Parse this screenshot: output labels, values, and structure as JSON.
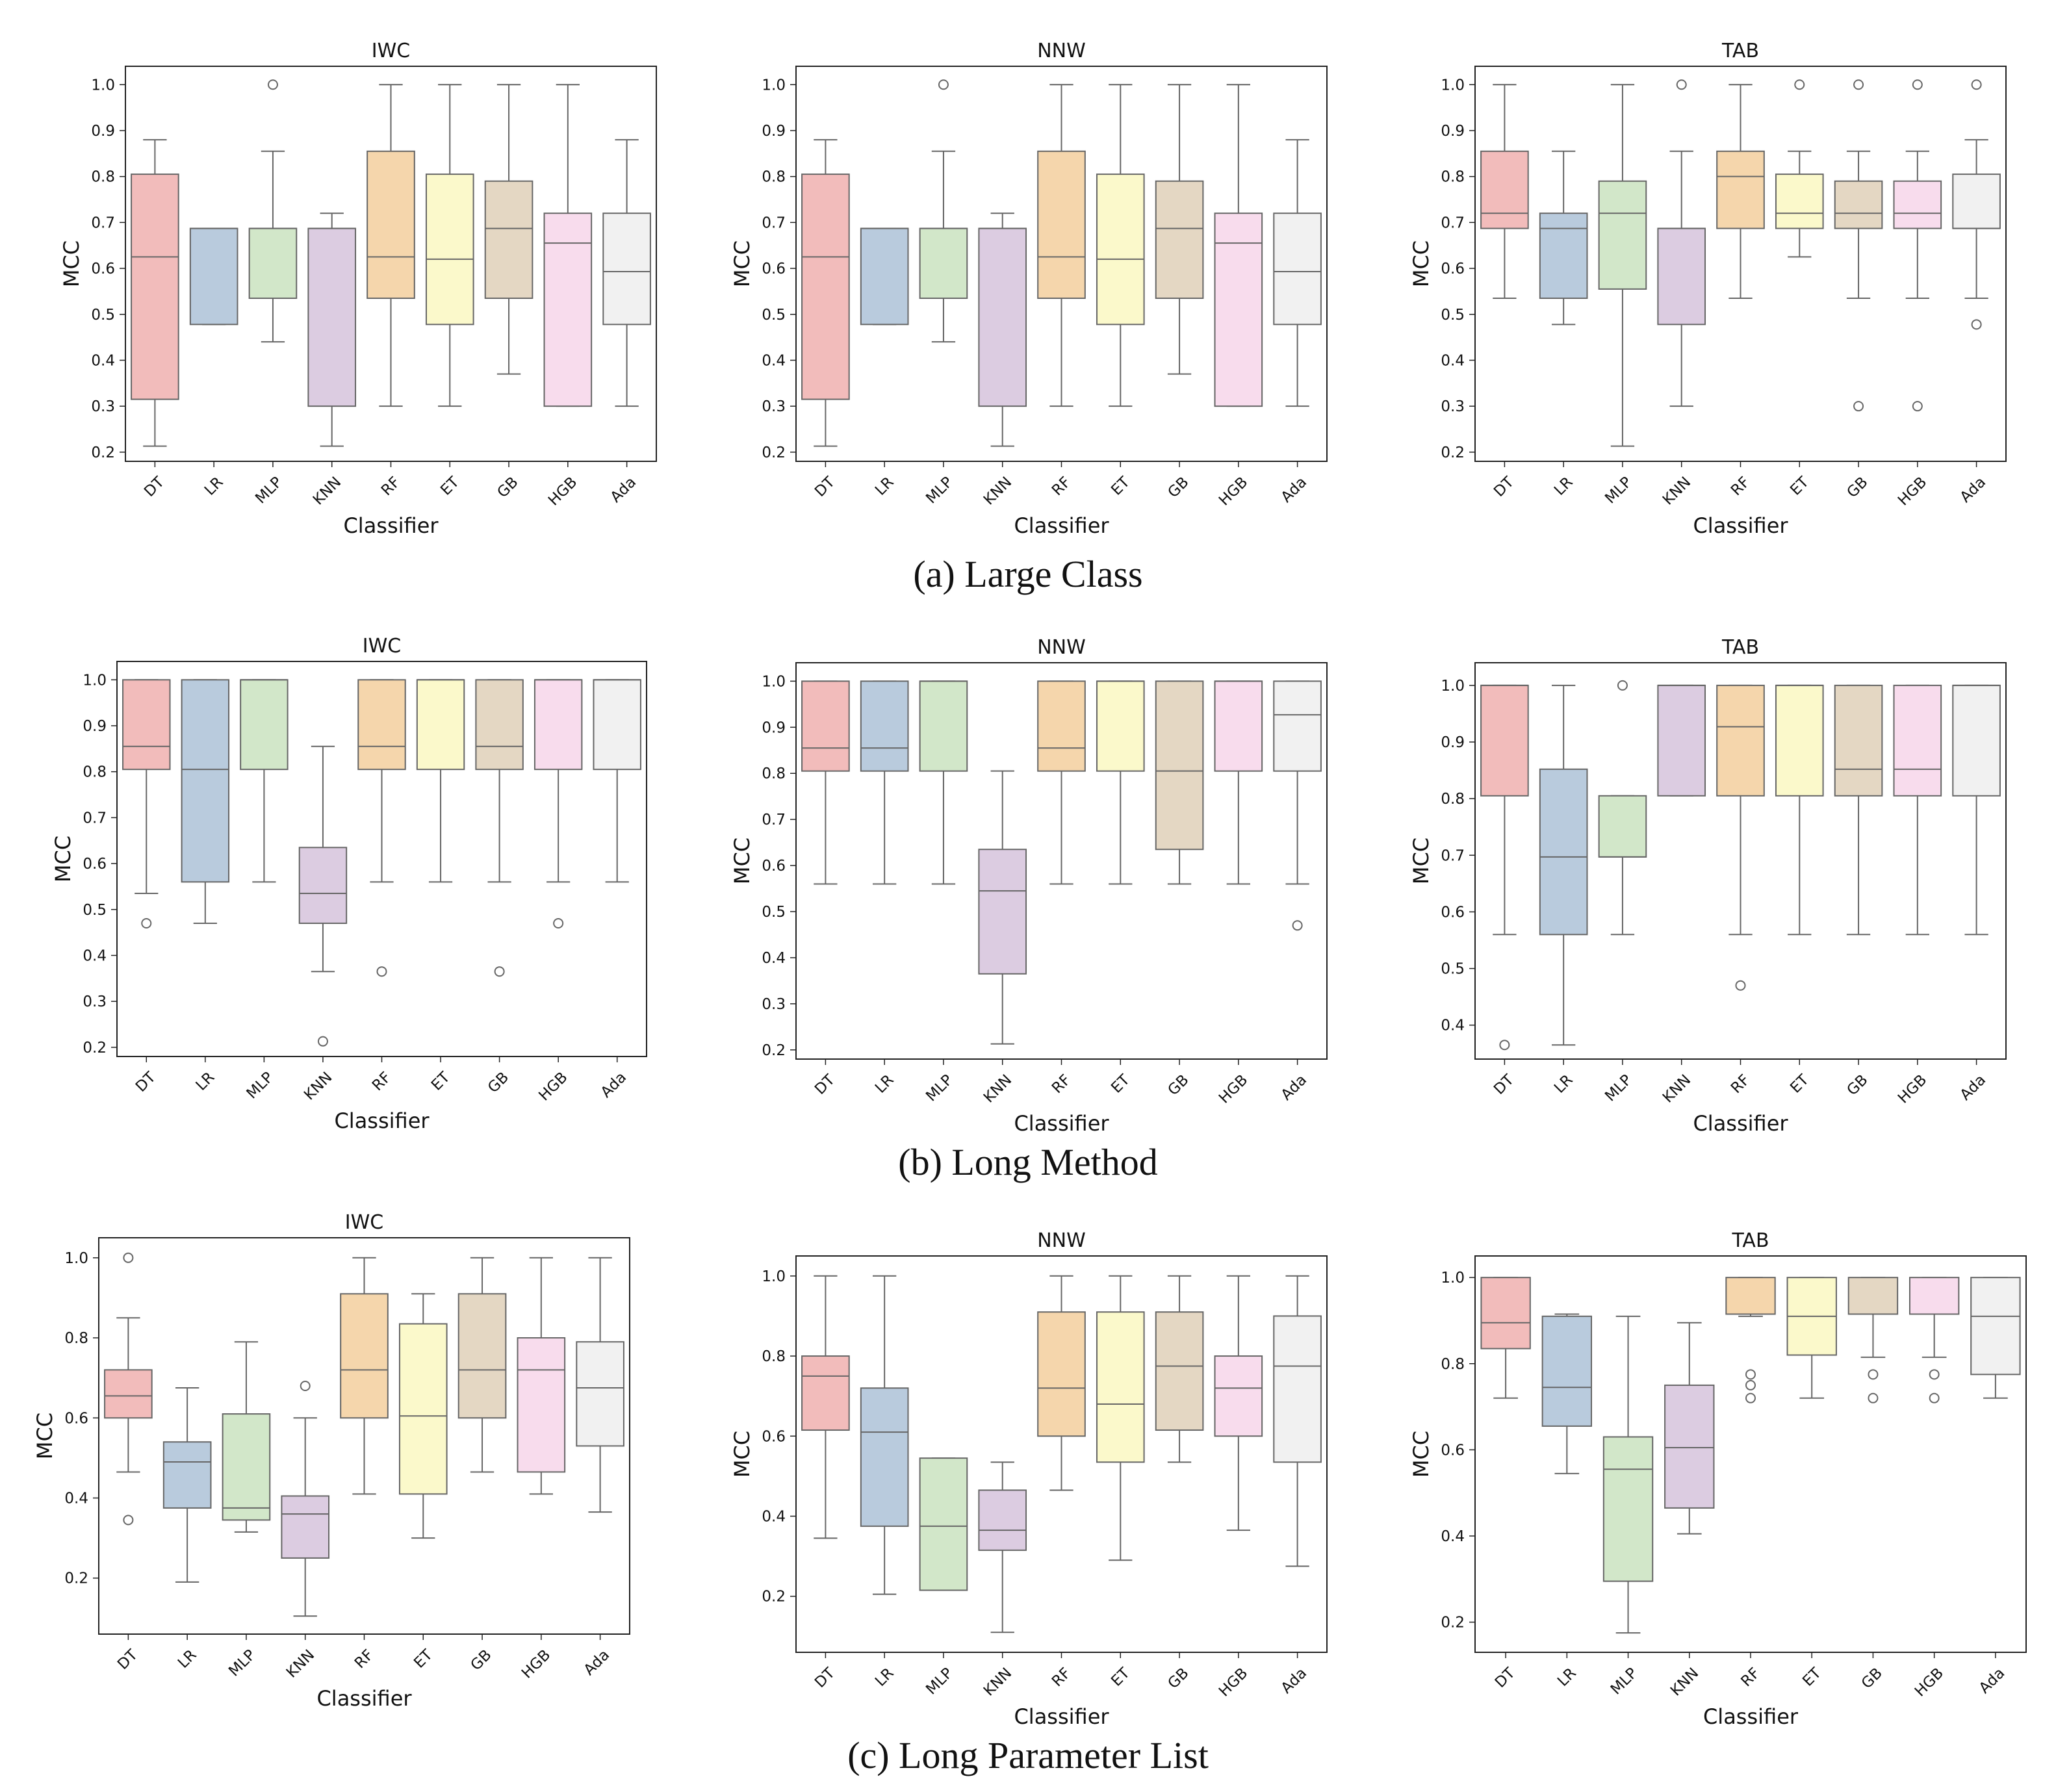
{
  "captions": [
    "(a) Large Class",
    "(b) Long Method",
    "(c) Long Parameter List"
  ],
  "palette": {
    "DT": "#f2bcbb",
    "LR": "#b9cbdd",
    "MLP": "#d2e7c9",
    "KNN": "#dccce1",
    "RF": "#f5d6ac",
    "ET": "#fbf9cb",
    "GB": "#e4d7c3",
    "HGB": "#f8dced",
    "Ada": "#f1f1f1",
    "line": "#666666",
    "frame": "#222222"
  },
  "chart_data": [
    {
      "type": "box",
      "row": 0,
      "col": 0,
      "title": "IWC",
      "xlabel": "Classifier",
      "ylabel": "MCC",
      "ylim": [
        0.18,
        1.04
      ],
      "yticks": [
        0.2,
        0.3,
        0.4,
        0.5,
        0.6,
        0.7,
        0.8,
        0.9,
        1.0
      ],
      "tick_decimals": 1,
      "categories": [
        "DT",
        "LR",
        "MLP",
        "KNN",
        "RF",
        "ET",
        "GB",
        "HGB",
        "Ada"
      ],
      "boxes": [
        {
          "min": 0.213,
          "q1": 0.315,
          "median": 0.625,
          "q3": 0.805,
          "max": 0.88,
          "outliers": []
        },
        {
          "min": 0.478,
          "q1": 0.478,
          "median": 0.687,
          "q3": 0.687,
          "max": 0.687,
          "outliers": []
        },
        {
          "min": 0.44,
          "q1": 0.535,
          "median": 0.687,
          "q3": 0.687,
          "max": 0.855,
          "outliers": [
            1.0
          ]
        },
        {
          "min": 0.213,
          "q1": 0.3,
          "median": 0.687,
          "q3": 0.687,
          "max": 0.72,
          "outliers": []
        },
        {
          "min": 0.3,
          "q1": 0.535,
          "median": 0.625,
          "q3": 0.855,
          "max": 1.0,
          "outliers": []
        },
        {
          "min": 0.3,
          "q1": 0.478,
          "median": 0.62,
          "q3": 0.805,
          "max": 1.0,
          "outliers": []
        },
        {
          "min": 0.37,
          "q1": 0.535,
          "median": 0.687,
          "q3": 0.79,
          "max": 1.0,
          "outliers": []
        },
        {
          "min": 0.3,
          "q1": 0.3,
          "median": 0.655,
          "q3": 0.72,
          "max": 1.0,
          "outliers": []
        },
        {
          "min": 0.3,
          "q1": 0.478,
          "median": 0.593,
          "q3": 0.72,
          "max": 0.88,
          "outliers": []
        }
      ]
    },
    {
      "type": "box",
      "row": 0,
      "col": 1,
      "title": "NNW",
      "xlabel": "Classifier",
      "ylabel": "MCC",
      "ylim": [
        0.18,
        1.04
      ],
      "yticks": [
        0.2,
        0.3,
        0.4,
        0.5,
        0.6,
        0.7,
        0.8,
        0.9,
        1.0
      ],
      "tick_decimals": 1,
      "categories": [
        "DT",
        "LR",
        "MLP",
        "KNN",
        "RF",
        "ET",
        "GB",
        "HGB",
        "Ada"
      ],
      "boxes": [
        {
          "min": 0.213,
          "q1": 0.315,
          "median": 0.625,
          "q3": 0.805,
          "max": 0.88,
          "outliers": []
        },
        {
          "min": 0.478,
          "q1": 0.478,
          "median": 0.687,
          "q3": 0.687,
          "max": 0.687,
          "outliers": []
        },
        {
          "min": 0.44,
          "q1": 0.535,
          "median": 0.687,
          "q3": 0.687,
          "max": 0.855,
          "outliers": [
            1.0
          ]
        },
        {
          "min": 0.213,
          "q1": 0.3,
          "median": 0.687,
          "q3": 0.687,
          "max": 0.72,
          "outliers": []
        },
        {
          "min": 0.3,
          "q1": 0.535,
          "median": 0.625,
          "q3": 0.855,
          "max": 1.0,
          "outliers": []
        },
        {
          "min": 0.3,
          "q1": 0.478,
          "median": 0.62,
          "q3": 0.805,
          "max": 1.0,
          "outliers": []
        },
        {
          "min": 0.37,
          "q1": 0.535,
          "median": 0.687,
          "q3": 0.79,
          "max": 1.0,
          "outliers": []
        },
        {
          "min": 0.3,
          "q1": 0.3,
          "median": 0.655,
          "q3": 0.72,
          "max": 1.0,
          "outliers": []
        },
        {
          "min": 0.3,
          "q1": 0.478,
          "median": 0.593,
          "q3": 0.72,
          "max": 0.88,
          "outliers": []
        }
      ]
    },
    {
      "type": "box",
      "row": 0,
      "col": 2,
      "title": "TAB",
      "xlabel": "Classifier",
      "ylabel": "MCC",
      "ylim": [
        0.18,
        1.04
      ],
      "yticks": [
        0.2,
        0.3,
        0.4,
        0.5,
        0.6,
        0.7,
        0.8,
        0.9,
        1.0
      ],
      "tick_decimals": 1,
      "categories": [
        "DT",
        "LR",
        "MLP",
        "KNN",
        "RF",
        "ET",
        "GB",
        "HGB",
        "Ada"
      ],
      "boxes": [
        {
          "min": 0.535,
          "q1": 0.687,
          "median": 0.72,
          "q3": 0.855,
          "max": 1.0,
          "outliers": []
        },
        {
          "min": 0.478,
          "q1": 0.535,
          "median": 0.687,
          "q3": 0.72,
          "max": 0.855,
          "outliers": []
        },
        {
          "min": 0.213,
          "q1": 0.555,
          "median": 0.72,
          "q3": 0.79,
          "max": 1.0,
          "outliers": []
        },
        {
          "min": 0.3,
          "q1": 0.478,
          "median": 0.687,
          "q3": 0.687,
          "max": 0.855,
          "outliers": [
            1.0
          ]
        },
        {
          "min": 0.535,
          "q1": 0.687,
          "median": 0.8,
          "q3": 0.855,
          "max": 1.0,
          "outliers": []
        },
        {
          "min": 0.625,
          "q1": 0.687,
          "median": 0.72,
          "q3": 0.805,
          "max": 0.855,
          "outliers": [
            1.0
          ]
        },
        {
          "min": 0.535,
          "q1": 0.687,
          "median": 0.72,
          "q3": 0.79,
          "max": 0.855,
          "outliers": [
            1.0,
            0.3
          ]
        },
        {
          "min": 0.535,
          "q1": 0.687,
          "median": 0.72,
          "q3": 0.79,
          "max": 0.855,
          "outliers": [
            1.0,
            0.3
          ]
        },
        {
          "min": 0.535,
          "q1": 0.687,
          "median": 0.687,
          "q3": 0.805,
          "max": 0.88,
          "outliers": [
            1.0,
            0.478
          ]
        }
      ]
    },
    {
      "type": "box",
      "row": 1,
      "col": 0,
      "title": "IWC",
      "xlabel": "Classifier",
      "ylabel": "MCC",
      "ylim": [
        0.18,
        1.04
      ],
      "yticks": [
        0.2,
        0.3,
        0.4,
        0.5,
        0.6,
        0.7,
        0.8,
        0.9,
        1.0
      ],
      "tick_decimals": 1,
      "categories": [
        "DT",
        "LR",
        "MLP",
        "KNN",
        "RF",
        "ET",
        "GB",
        "HGB",
        "Ada"
      ],
      "boxes": [
        {
          "min": 0.535,
          "q1": 0.805,
          "median": 0.855,
          "q3": 1.0,
          "max": 1.0,
          "outliers": [
            0.47
          ]
        },
        {
          "min": 0.47,
          "q1": 0.56,
          "median": 0.805,
          "q3": 1.0,
          "max": 1.0,
          "outliers": []
        },
        {
          "min": 0.56,
          "q1": 0.805,
          "median": 1.0,
          "q3": 1.0,
          "max": 1.0,
          "outliers": []
        },
        {
          "min": 0.365,
          "q1": 0.47,
          "median": 0.535,
          "q3": 0.635,
          "max": 0.855,
          "outliers": [
            0.213
          ]
        },
        {
          "min": 0.56,
          "q1": 0.805,
          "median": 0.855,
          "q3": 1.0,
          "max": 1.0,
          "outliers": [
            0.365
          ]
        },
        {
          "min": 0.56,
          "q1": 0.805,
          "median": 1.0,
          "q3": 1.0,
          "max": 1.0,
          "outliers": []
        },
        {
          "min": 0.56,
          "q1": 0.805,
          "median": 0.855,
          "q3": 1.0,
          "max": 1.0,
          "outliers": [
            0.365
          ]
        },
        {
          "min": 0.56,
          "q1": 0.805,
          "median": 1.0,
          "q3": 1.0,
          "max": 1.0,
          "outliers": [
            0.47
          ]
        },
        {
          "min": 0.56,
          "q1": 0.805,
          "median": 1.0,
          "q3": 1.0,
          "max": 1.0,
          "outliers": []
        }
      ]
    },
    {
      "type": "box",
      "row": 1,
      "col": 1,
      "title": "NNW",
      "xlabel": "Classifier",
      "ylabel": "MCC",
      "ylim": [
        0.18,
        1.04
      ],
      "yticks": [
        0.2,
        0.3,
        0.4,
        0.5,
        0.6,
        0.7,
        0.8,
        0.9,
        1.0
      ],
      "tick_decimals": 1,
      "categories": [
        "DT",
        "LR",
        "MLP",
        "KNN",
        "RF",
        "ET",
        "GB",
        "HGB",
        "Ada"
      ],
      "boxes": [
        {
          "min": 0.56,
          "q1": 0.805,
          "median": 0.855,
          "q3": 1.0,
          "max": 1.0,
          "outliers": []
        },
        {
          "min": 0.56,
          "q1": 0.805,
          "median": 0.855,
          "q3": 1.0,
          "max": 1.0,
          "outliers": []
        },
        {
          "min": 0.56,
          "q1": 0.805,
          "median": 1.0,
          "q3": 1.0,
          "max": 1.0,
          "outliers": []
        },
        {
          "min": 0.213,
          "q1": 0.365,
          "median": 0.545,
          "q3": 0.635,
          "max": 0.805,
          "outliers": []
        },
        {
          "min": 0.56,
          "q1": 0.805,
          "median": 0.855,
          "q3": 1.0,
          "max": 1.0,
          "outliers": []
        },
        {
          "min": 0.56,
          "q1": 0.805,
          "median": 1.0,
          "q3": 1.0,
          "max": 1.0,
          "outliers": []
        },
        {
          "min": 0.56,
          "q1": 0.635,
          "median": 0.805,
          "q3": 1.0,
          "max": 1.0,
          "outliers": []
        },
        {
          "min": 0.56,
          "q1": 0.805,
          "median": 1.0,
          "q3": 1.0,
          "max": 1.0,
          "outliers": []
        },
        {
          "min": 0.56,
          "q1": 0.805,
          "median": 0.927,
          "q3": 1.0,
          "max": 1.0,
          "outliers": [
            0.47
          ]
        }
      ]
    },
    {
      "type": "box",
      "row": 1,
      "col": 2,
      "title": "TAB",
      "xlabel": "Classifier",
      "ylabel": "MCC",
      "ylim": [
        0.34,
        1.04
      ],
      "yticks": [
        0.4,
        0.5,
        0.6,
        0.7,
        0.8,
        0.9,
        1.0
      ],
      "tick_decimals": 1,
      "categories": [
        "DT",
        "LR",
        "MLP",
        "KNN",
        "RF",
        "ET",
        "GB",
        "HGB",
        "Ada"
      ],
      "boxes": [
        {
          "min": 0.56,
          "q1": 0.805,
          "median": 1.0,
          "q3": 1.0,
          "max": 1.0,
          "outliers": [
            0.365
          ]
        },
        {
          "min": 0.365,
          "q1": 0.56,
          "median": 0.697,
          "q3": 0.852,
          "max": 1.0,
          "outliers": []
        },
        {
          "min": 0.56,
          "q1": 0.697,
          "median": 0.697,
          "q3": 0.805,
          "max": 0.805,
          "outliers": [
            1.0
          ]
        },
        {
          "min": 0.805,
          "q1": 0.805,
          "median": 1.0,
          "q3": 1.0,
          "max": 1.0,
          "outliers": []
        },
        {
          "min": 0.56,
          "q1": 0.805,
          "median": 0.927,
          "q3": 1.0,
          "max": 1.0,
          "outliers": [
            0.47
          ]
        },
        {
          "min": 0.56,
          "q1": 0.805,
          "median": 1.0,
          "q3": 1.0,
          "max": 1.0,
          "outliers": []
        },
        {
          "min": 0.56,
          "q1": 0.805,
          "median": 0.852,
          "q3": 1.0,
          "max": 1.0,
          "outliers": []
        },
        {
          "min": 0.56,
          "q1": 0.805,
          "median": 0.852,
          "q3": 1.0,
          "max": 1.0,
          "outliers": []
        },
        {
          "min": 0.56,
          "q1": 0.805,
          "median": 1.0,
          "q3": 1.0,
          "max": 1.0,
          "outliers": []
        }
      ]
    },
    {
      "type": "box",
      "row": 2,
      "col": 0,
      "title": "IWC",
      "xlabel": "Classifier",
      "ylabel": "MCC",
      "ylim": [
        0.06,
        1.05
      ],
      "yticks": [
        0.2,
        0.4,
        0.6,
        0.8,
        1.0
      ],
      "tick_decimals": 1,
      "categories": [
        "DT",
        "LR",
        "MLP",
        "KNN",
        "RF",
        "ET",
        "GB",
        "HGB",
        "Ada"
      ],
      "boxes": [
        {
          "min": 0.465,
          "q1": 0.6,
          "median": 0.655,
          "q3": 0.72,
          "max": 0.85,
          "outliers": [
            1.0,
            0.345
          ]
        },
        {
          "min": 0.19,
          "q1": 0.375,
          "median": 0.49,
          "q3": 0.54,
          "max": 0.675,
          "outliers": []
        },
        {
          "min": 0.315,
          "q1": 0.345,
          "median": 0.375,
          "q3": 0.61,
          "max": 0.79,
          "outliers": []
        },
        {
          "min": 0.105,
          "q1": 0.25,
          "median": 0.36,
          "q3": 0.405,
          "max": 0.6,
          "outliers": [
            0.68
          ]
        },
        {
          "min": 0.41,
          "q1": 0.6,
          "median": 0.72,
          "q3": 0.91,
          "max": 1.0,
          "outliers": []
        },
        {
          "min": 0.3,
          "q1": 0.41,
          "median": 0.605,
          "q3": 0.835,
          "max": 0.91,
          "outliers": []
        },
        {
          "min": 0.465,
          "q1": 0.6,
          "median": 0.72,
          "q3": 0.91,
          "max": 1.0,
          "outliers": []
        },
        {
          "min": 0.41,
          "q1": 0.465,
          "median": 0.72,
          "q3": 0.8,
          "max": 1.0,
          "outliers": []
        },
        {
          "min": 0.365,
          "q1": 0.53,
          "median": 0.675,
          "q3": 0.79,
          "max": 1.0,
          "outliers": []
        }
      ]
    },
    {
      "type": "box",
      "row": 2,
      "col": 1,
      "title": "NNW",
      "xlabel": "Classifier",
      "ylabel": "MCC",
      "ylim": [
        0.06,
        1.05
      ],
      "yticks": [
        0.2,
        0.4,
        0.6,
        0.8,
        1.0
      ],
      "tick_decimals": 1,
      "categories": [
        "DT",
        "LR",
        "MLP",
        "KNN",
        "RF",
        "ET",
        "GB",
        "HGB",
        "Ada"
      ],
      "boxes": [
        {
          "min": 0.345,
          "q1": 0.615,
          "median": 0.75,
          "q3": 0.8,
          "max": 1.0,
          "outliers": []
        },
        {
          "min": 0.205,
          "q1": 0.375,
          "median": 0.61,
          "q3": 0.72,
          "max": 1.0,
          "outliers": []
        },
        {
          "min": 0.215,
          "q1": 0.215,
          "median": 0.375,
          "q3": 0.545,
          "max": 0.545,
          "outliers": []
        },
        {
          "min": 0.11,
          "q1": 0.315,
          "median": 0.365,
          "q3": 0.465,
          "max": 0.535,
          "outliers": []
        },
        {
          "min": 0.465,
          "q1": 0.6,
          "median": 0.72,
          "q3": 0.91,
          "max": 1.0,
          "outliers": []
        },
        {
          "min": 0.29,
          "q1": 0.535,
          "median": 0.68,
          "q3": 0.91,
          "max": 1.0,
          "outliers": []
        },
        {
          "min": 0.535,
          "q1": 0.615,
          "median": 0.775,
          "q3": 0.91,
          "max": 1.0,
          "outliers": []
        },
        {
          "min": 0.365,
          "q1": 0.6,
          "median": 0.72,
          "q3": 0.8,
          "max": 1.0,
          "outliers": []
        },
        {
          "min": 0.275,
          "q1": 0.535,
          "median": 0.775,
          "q3": 0.9,
          "max": 1.0,
          "outliers": []
        }
      ]
    },
    {
      "type": "box",
      "row": 2,
      "col": 2,
      "title": "TAB",
      "xlabel": "Classifier",
      "ylabel": "MCC",
      "ylim": [
        0.13,
        1.05
      ],
      "yticks": [
        0.2,
        0.4,
        0.6,
        0.8,
        1.0
      ],
      "tick_decimals": 1,
      "categories": [
        "DT",
        "LR",
        "MLP",
        "KNN",
        "RF",
        "ET",
        "GB",
        "HGB",
        "Ada"
      ],
      "boxes": [
        {
          "min": 0.72,
          "q1": 0.835,
          "median": 0.895,
          "q3": 1.0,
          "max": 1.0,
          "outliers": []
        },
        {
          "min": 0.545,
          "q1": 0.655,
          "median": 0.745,
          "q3": 0.91,
          "max": 0.915,
          "outliers": []
        },
        {
          "min": 0.175,
          "q1": 0.295,
          "median": 0.555,
          "q3": 0.63,
          "max": 0.91,
          "outliers": []
        },
        {
          "min": 0.405,
          "q1": 0.465,
          "median": 0.605,
          "q3": 0.75,
          "max": 0.895,
          "outliers": []
        },
        {
          "min": 0.91,
          "q1": 0.915,
          "median": 0.915,
          "q3": 1.0,
          "max": 1.0,
          "outliers": [
            0.775,
            0.75,
            0.72
          ]
        },
        {
          "min": 0.72,
          "q1": 0.82,
          "median": 0.91,
          "q3": 1.0,
          "max": 1.0,
          "outliers": []
        },
        {
          "min": 0.815,
          "q1": 0.915,
          "median": 0.915,
          "q3": 1.0,
          "max": 1.0,
          "outliers": [
            0.775,
            0.72
          ]
        },
        {
          "min": 0.815,
          "q1": 0.915,
          "median": 0.915,
          "q3": 1.0,
          "max": 1.0,
          "outliers": [
            0.775,
            0.72
          ]
        },
        {
          "min": 0.72,
          "q1": 0.775,
          "median": 0.91,
          "q3": 1.0,
          "max": 1.0,
          "outliers": []
        }
      ]
    }
  ]
}
